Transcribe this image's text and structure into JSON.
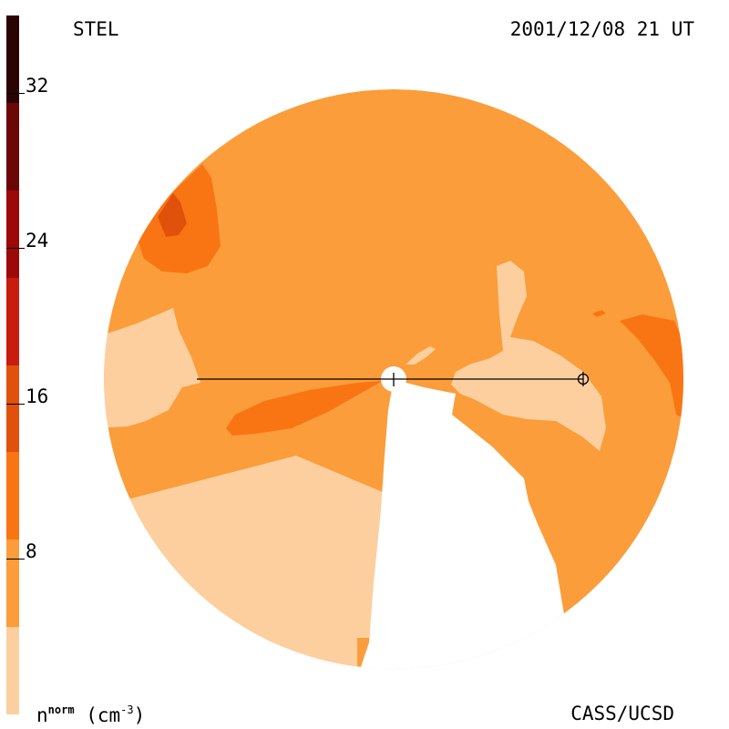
{
  "header": {
    "instrument": "STEL",
    "datetime": "2001/12/08 21 UT"
  },
  "footer": {
    "credit": "CASS/UCSD",
    "units_symbol": "n",
    "units_sup": "norm",
    "units_unit": "(cm",
    "units_power": "-3",
    "units_close": ")"
  },
  "colorbar": {
    "ticks": [
      "8",
      "16",
      "24",
      "32"
    ],
    "range": [
      0,
      36
    ],
    "colors": [
      "#fdcf9f",
      "#fb9d3a",
      "#f97513",
      "#e0510b",
      "#c81c0e",
      "#9d0808",
      "#6b0707",
      "#2a0404"
    ]
  },
  "map": {
    "colors": {
      "lightest": "#fdcf9f",
      "light": "#fb9d3a",
      "medium": "#f97513",
      "dark": "#e0510b",
      "gap": "#ffffff"
    },
    "earth_symbol": "⊕"
  }
}
